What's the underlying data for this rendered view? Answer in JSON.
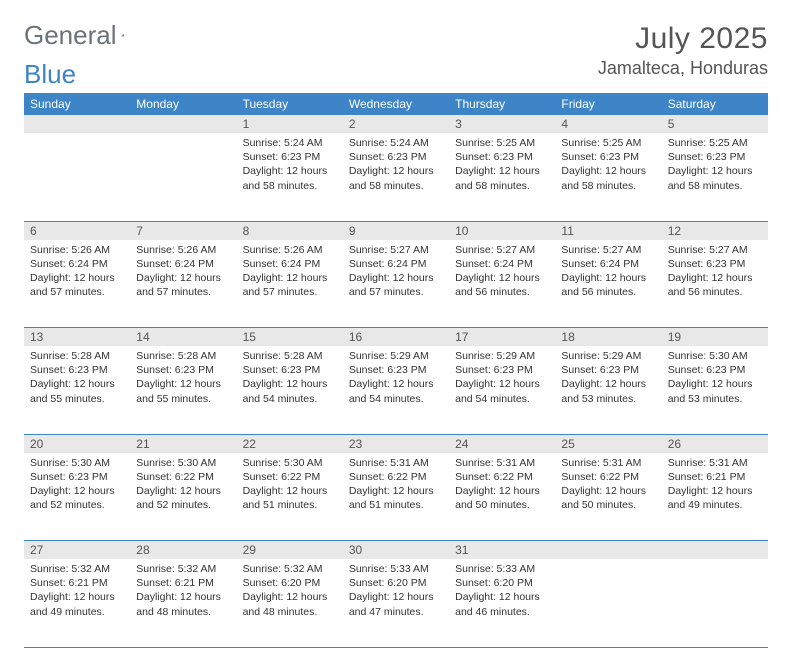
{
  "logo": {
    "text_a": "General",
    "text_b": "Blue"
  },
  "title": "July 2025",
  "location": "Jamalteca, Honduras",
  "colors": {
    "accent": "#3d85c6",
    "daynum_bg": "#e8e8e8",
    "text": "#333333",
    "muted": "#6b7278"
  },
  "weekdays": [
    "Sunday",
    "Monday",
    "Tuesday",
    "Wednesday",
    "Thursday",
    "Friday",
    "Saturday"
  ],
  "weeks": [
    [
      null,
      null,
      {
        "n": "1",
        "sr": "5:24 AM",
        "ss": "6:23 PM",
        "dl": "12 hours and 58 minutes."
      },
      {
        "n": "2",
        "sr": "5:24 AM",
        "ss": "6:23 PM",
        "dl": "12 hours and 58 minutes."
      },
      {
        "n": "3",
        "sr": "5:25 AM",
        "ss": "6:23 PM",
        "dl": "12 hours and 58 minutes."
      },
      {
        "n": "4",
        "sr": "5:25 AM",
        "ss": "6:23 PM",
        "dl": "12 hours and 58 minutes."
      },
      {
        "n": "5",
        "sr": "5:25 AM",
        "ss": "6:23 PM",
        "dl": "12 hours and 58 minutes."
      }
    ],
    [
      {
        "n": "6",
        "sr": "5:26 AM",
        "ss": "6:24 PM",
        "dl": "12 hours and 57 minutes."
      },
      {
        "n": "7",
        "sr": "5:26 AM",
        "ss": "6:24 PM",
        "dl": "12 hours and 57 minutes."
      },
      {
        "n": "8",
        "sr": "5:26 AM",
        "ss": "6:24 PM",
        "dl": "12 hours and 57 minutes."
      },
      {
        "n": "9",
        "sr": "5:27 AM",
        "ss": "6:24 PM",
        "dl": "12 hours and 57 minutes."
      },
      {
        "n": "10",
        "sr": "5:27 AM",
        "ss": "6:24 PM",
        "dl": "12 hours and 56 minutes."
      },
      {
        "n": "11",
        "sr": "5:27 AM",
        "ss": "6:24 PM",
        "dl": "12 hours and 56 minutes."
      },
      {
        "n": "12",
        "sr": "5:27 AM",
        "ss": "6:23 PM",
        "dl": "12 hours and 56 minutes."
      }
    ],
    [
      {
        "n": "13",
        "sr": "5:28 AM",
        "ss": "6:23 PM",
        "dl": "12 hours and 55 minutes."
      },
      {
        "n": "14",
        "sr": "5:28 AM",
        "ss": "6:23 PM",
        "dl": "12 hours and 55 minutes."
      },
      {
        "n": "15",
        "sr": "5:28 AM",
        "ss": "6:23 PM",
        "dl": "12 hours and 54 minutes."
      },
      {
        "n": "16",
        "sr": "5:29 AM",
        "ss": "6:23 PM",
        "dl": "12 hours and 54 minutes."
      },
      {
        "n": "17",
        "sr": "5:29 AM",
        "ss": "6:23 PM",
        "dl": "12 hours and 54 minutes."
      },
      {
        "n": "18",
        "sr": "5:29 AM",
        "ss": "6:23 PM",
        "dl": "12 hours and 53 minutes."
      },
      {
        "n": "19",
        "sr": "5:30 AM",
        "ss": "6:23 PM",
        "dl": "12 hours and 53 minutes."
      }
    ],
    [
      {
        "n": "20",
        "sr": "5:30 AM",
        "ss": "6:23 PM",
        "dl": "12 hours and 52 minutes."
      },
      {
        "n": "21",
        "sr": "5:30 AM",
        "ss": "6:22 PM",
        "dl": "12 hours and 52 minutes."
      },
      {
        "n": "22",
        "sr": "5:30 AM",
        "ss": "6:22 PM",
        "dl": "12 hours and 51 minutes."
      },
      {
        "n": "23",
        "sr": "5:31 AM",
        "ss": "6:22 PM",
        "dl": "12 hours and 51 minutes."
      },
      {
        "n": "24",
        "sr": "5:31 AM",
        "ss": "6:22 PM",
        "dl": "12 hours and 50 minutes."
      },
      {
        "n": "25",
        "sr": "5:31 AM",
        "ss": "6:22 PM",
        "dl": "12 hours and 50 minutes."
      },
      {
        "n": "26",
        "sr": "5:31 AM",
        "ss": "6:21 PM",
        "dl": "12 hours and 49 minutes."
      }
    ],
    [
      {
        "n": "27",
        "sr": "5:32 AM",
        "ss": "6:21 PM",
        "dl": "12 hours and 49 minutes."
      },
      {
        "n": "28",
        "sr": "5:32 AM",
        "ss": "6:21 PM",
        "dl": "12 hours and 48 minutes."
      },
      {
        "n": "29",
        "sr": "5:32 AM",
        "ss": "6:20 PM",
        "dl": "12 hours and 48 minutes."
      },
      {
        "n": "30",
        "sr": "5:33 AM",
        "ss": "6:20 PM",
        "dl": "12 hours and 47 minutes."
      },
      {
        "n": "31",
        "sr": "5:33 AM",
        "ss": "6:20 PM",
        "dl": "12 hours and 46 minutes."
      },
      null,
      null
    ]
  ],
  "labels": {
    "sunrise": "Sunrise:",
    "sunset": "Sunset:",
    "daylight": "Daylight:"
  }
}
